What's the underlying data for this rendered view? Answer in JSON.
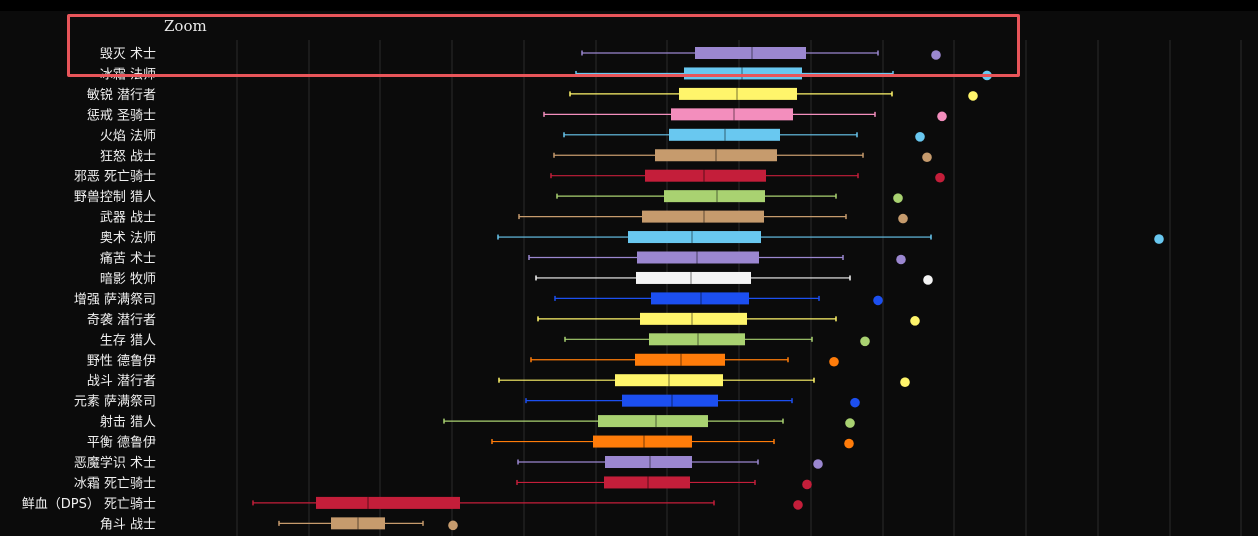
{
  "zoom_label": "Zoom",
  "chart_data": {
    "type": "boxplot",
    "grid": true,
    "categories": [
      "毁灭 术士",
      "冰霜 法师",
      "敏锐 潜行者",
      "惩戒 圣骑士",
      "火焰 法师",
      "狂怒 战士",
      "邪恶 死亡骑士",
      "野兽控制 猎人",
      "武器 战士",
      "奥术 法师",
      "痛苦 术士",
      "暗影 牧师",
      "增强 萨满祭司",
      "奇袭 潜行者",
      "生存 猎人",
      "野性 德鲁伊",
      "战斗 潜行者",
      "元素 萨满祭司",
      "射击 猎人",
      "平衡 德鲁伊",
      "恶魔学识 术士",
      "冰霜 死亡骑士",
      "鲜血（DPS） 死亡骑士",
      "角斗 战士"
    ],
    "colors": [
      "#9b87d0",
      "#69c8f0",
      "#fff56b",
      "#f38ebd",
      "#69c8f0",
      "#c69b6d",
      "#c41e3a",
      "#a9d271",
      "#c69b6d",
      "#69c8f0",
      "#9b87d0",
      "#f4f4f4",
      "#1c4ff0",
      "#fff56b",
      "#a9d271",
      "#ff7c0a",
      "#fff56b",
      "#1c4ff0",
      "#a9d271",
      "#ff7c0a",
      "#9b87d0",
      "#c41e3a",
      "#c41e3a",
      "#c69b6d"
    ],
    "series": [
      {
        "stats": [
          [
            582,
            695,
            752,
            806,
            878,
            936
          ],
          [
            576,
            684,
            742,
            802,
            893,
            987
          ],
          [
            570,
            679,
            737,
            797,
            892,
            973
          ],
          [
            544,
            671,
            734,
            793,
            875,
            942
          ],
          [
            564,
            669,
            725,
            780,
            857,
            920
          ],
          [
            554,
            655,
            716,
            777,
            863,
            927
          ],
          [
            551,
            645,
            704,
            766,
            858,
            940
          ],
          [
            557,
            664,
            717,
            765,
            836,
            898
          ],
          [
            519,
            642,
            704,
            764,
            846,
            903
          ],
          [
            498,
            628,
            692,
            761,
            931,
            1159
          ],
          [
            529,
            637,
            697,
            759,
            843,
            901
          ],
          [
            536,
            636,
            691,
            751,
            850,
            928
          ],
          [
            555,
            651,
            701,
            749,
            819,
            878
          ],
          [
            538,
            640,
            692,
            747,
            836,
            915
          ],
          [
            565,
            649,
            698,
            745,
            812,
            865
          ],
          [
            531,
            635,
            681,
            725,
            788,
            834
          ],
          [
            499,
            615,
            669,
            723,
            814,
            905
          ],
          [
            526,
            622,
            672,
            718,
            792,
            855
          ],
          [
            444,
            598,
            656,
            708,
            783,
            850
          ],
          [
            492,
            593,
            644,
            692,
            774,
            849
          ],
          [
            518,
            605,
            650,
            692,
            758,
            818
          ],
          [
            517,
            604,
            648,
            690,
            755,
            807
          ],
          [
            253,
            316,
            368,
            460,
            714,
            798
          ],
          [
            279,
            331,
            358,
            385,
            423,
            453
          ]
        ]
      }
    ]
  }
}
